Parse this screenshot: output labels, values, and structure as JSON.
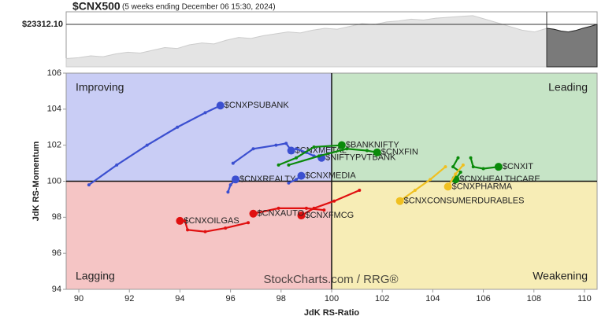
{
  "chart_data": {
    "type": "rrg",
    "title": "$CNX500",
    "subtitle": "(5 weeks ending December 06 15:30, 2024)",
    "price": {
      "label": "$23312.10",
      "value": 23312.1,
      "ylim": [
        21000,
        24000
      ],
      "values": [
        21450,
        21500,
        21600,
        21550,
        21700,
        21800,
        21750,
        21900,
        22050,
        22000,
        22200,
        22300,
        22250,
        22450,
        22600,
        22550,
        22700,
        22800,
        22900,
        22850,
        23000,
        23100,
        23050,
        23200,
        23350,
        23300,
        23450,
        23500,
        23600,
        23550,
        23650,
        23700,
        23750,
        23790,
        23600,
        23400,
        23200,
        23000,
        22900,
        23100
      ],
      "recent_values": [
        23100,
        23050,
        22950,
        22900,
        22980,
        23100,
        23200,
        23312.1
      ]
    },
    "xlabel": "JdK RS-Ratio",
    "ylabel": "JdK RS-Momentum",
    "watermark": "StockCharts.com / RRG®",
    "quadrants": [
      "Improving",
      "Leading",
      "Lagging",
      "Weakening"
    ],
    "center": [
      100,
      100
    ],
    "xlim": [
      89.5,
      110.5
    ],
    "ylim": [
      94,
      106
    ],
    "xticks": [
      90,
      92,
      94,
      96,
      98,
      100,
      102,
      104,
      106,
      108,
      110
    ],
    "yticks": [
      94,
      96,
      98,
      100,
      102,
      104,
      106
    ],
    "series": [
      {
        "name": "$CNXPSUBANK",
        "color": "#3b4fd0",
        "x": [
          90.4,
          91.5,
          92.7,
          93.9,
          95.0,
          95.6
        ],
        "y": [
          99.8,
          100.9,
          102.0,
          103.0,
          103.8,
          104.2
        ]
      },
      {
        "name": "$CNXMETAL",
        "color": "#3b4fd0",
        "x": [
          96.1,
          96.9,
          97.8,
          98.2,
          98.4
        ],
        "y": [
          101.0,
          101.8,
          102.0,
          102.1,
          101.7
        ]
      },
      {
        "name": "$NIFTYPVTBANK",
        "color": "#3b4fd0",
        "x": [
          98.6,
          99.0,
          99.3,
          99.6
        ],
        "y": [
          101.8,
          101.6,
          101.4,
          101.3
        ]
      },
      {
        "name": "$CNXREALTY",
        "color": "#3b4fd0",
        "x": [
          95.9,
          96.0,
          96.2
        ],
        "y": [
          99.4,
          99.8,
          100.1
        ]
      },
      {
        "name": "$CNXMEDIA",
        "color": "#3b4fd0",
        "x": [
          98.3,
          98.6,
          98.8
        ],
        "y": [
          99.9,
          100.1,
          100.3
        ]
      },
      {
        "name": "$BANKNIFTY",
        "color": "#0a8a0a",
        "x": [
          97.9,
          98.6,
          99.3,
          100.4
        ],
        "y": [
          100.9,
          101.3,
          101.9,
          102.0
        ]
      },
      {
        "name": "$CNXFIN",
        "color": "#0a8a0a",
        "x": [
          98.3,
          99.5,
          100.6,
          101.4,
          101.8
        ],
        "y": [
          100.9,
          101.4,
          101.8,
          101.7,
          101.6
        ]
      },
      {
        "name": "$CNXIT",
        "color": "#0a8a0a",
        "x": [
          105.5,
          105.6,
          106.0,
          106.6
        ],
        "y": [
          101.3,
          100.8,
          100.7,
          100.8
        ]
      },
      {
        "name": "$CNXHEALTHCARE",
        "color": "#0a8a0a",
        "x": [
          105.0,
          104.8,
          105.1,
          104.9
        ],
        "y": [
          101.3,
          100.8,
          100.5,
          100.1
        ]
      },
      {
        "name": "$CNXPHARMA",
        "color": "#f0c020",
        "x": [
          105.2,
          104.9,
          104.6
        ],
        "y": [
          100.9,
          100.4,
          99.7
        ]
      },
      {
        "name": "$CNXCONSUMERDURABLES",
        "color": "#f0c020",
        "x": [
          104.5,
          103.9,
          103.3,
          102.7
        ],
        "y": [
          100.8,
          100.1,
          99.5,
          98.9
        ]
      },
      {
        "name": "$CNXFMCG",
        "color": "#e01010",
        "x": [
          101.1,
          100.1,
          99.3,
          98.8
        ],
        "y": [
          99.5,
          98.9,
          98.5,
          98.1
        ]
      },
      {
        "name": "$CNXAUTO",
        "color": "#e01010",
        "x": [
          99.7,
          99.0,
          97.9,
          96.9
        ],
        "y": [
          98.4,
          98.5,
          98.5,
          98.2
        ]
      },
      {
        "name": "$CNXOILGAS",
        "color": "#e01010",
        "x": [
          96.7,
          95.8,
          95.0,
          94.3,
          94.2,
          94.0
        ],
        "y": [
          97.7,
          97.4,
          97.2,
          97.3,
          97.8,
          97.8
        ]
      }
    ]
  }
}
